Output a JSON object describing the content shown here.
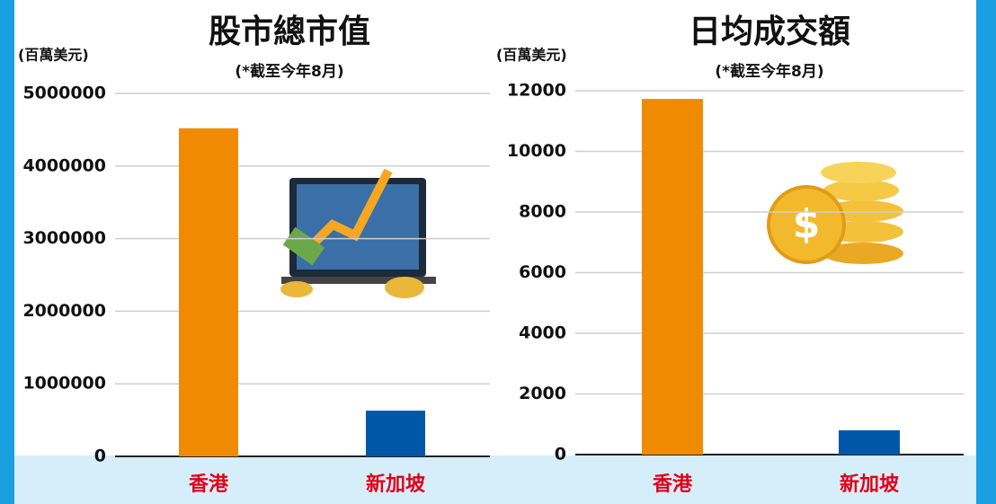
{
  "chart_data": [
    {
      "type": "bar",
      "title": "股市總市值",
      "subtitle": "(*截至今年8月)",
      "y_label": "(百萬美元)",
      "categories": [
        "香港",
        "新加坡"
      ],
      "values": [
        4520000,
        630000
      ],
      "colors": [
        "#f08a00",
        "#0057a8"
      ],
      "ylim": [
        0,
        5000000
      ],
      "yticks": [
        0,
        1000000,
        2000000,
        3000000,
        4000000,
        5000000
      ],
      "grid": true
    },
    {
      "type": "bar",
      "title": "日均成交額",
      "subtitle": "(*截至今年8月)",
      "y_label": "(百萬美元)",
      "categories": [
        "香港",
        "新加坡"
      ],
      "values": [
        11730,
        800
      ],
      "colors": [
        "#f08a00",
        "#0057a8"
      ],
      "ylim": [
        0,
        12000
      ],
      "yticks": [
        0,
        2000,
        4000,
        6000,
        8000,
        10000,
        12000
      ],
      "grid": true
    }
  ]
}
